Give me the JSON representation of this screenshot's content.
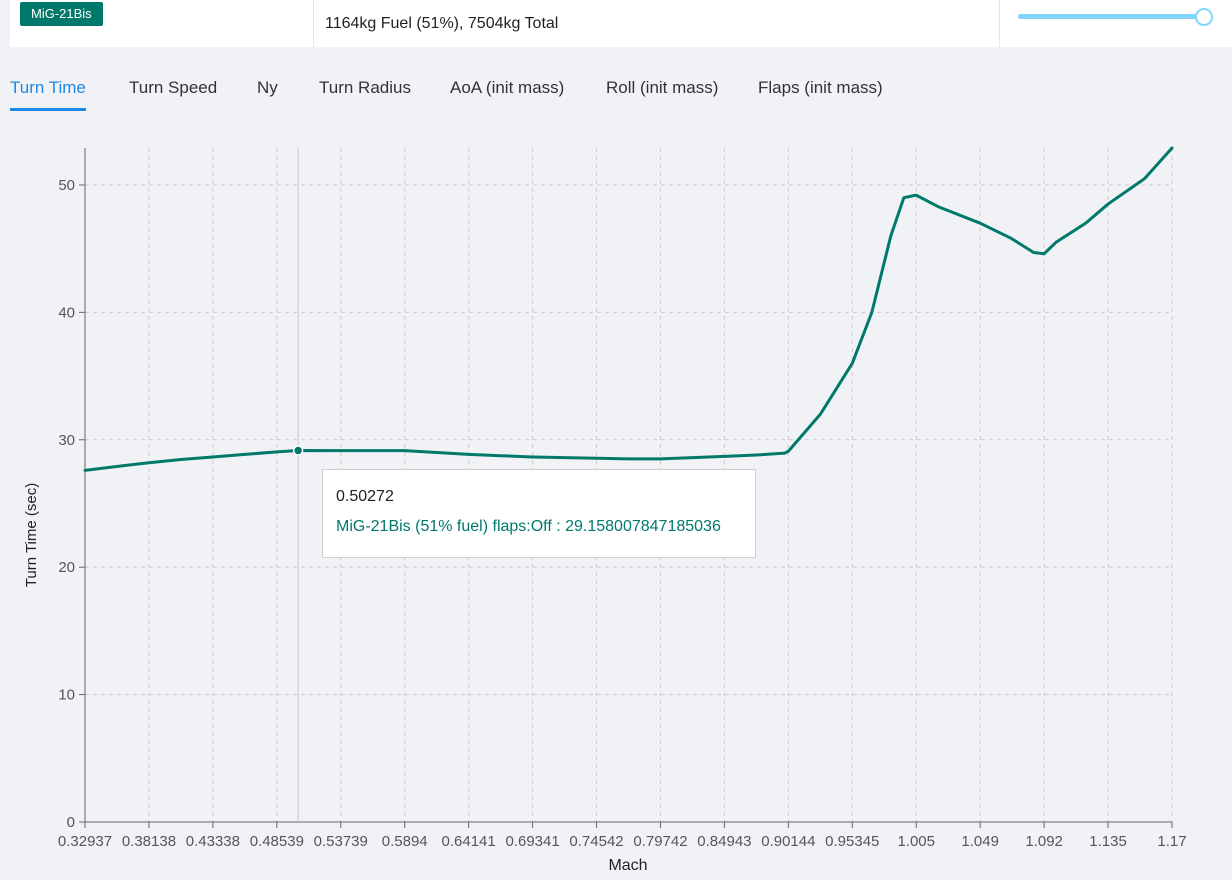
{
  "topbar": {
    "aircraft_badge": "MiG-21Bis",
    "fuel_text": "1164kg Fuel (51%), 7504kg Total",
    "fuel_slider_fraction": 0.95
  },
  "tabs": [
    {
      "label": "Turn Time",
      "active": true
    },
    {
      "label": "Turn Speed",
      "active": false
    },
    {
      "label": "Ny",
      "active": false
    },
    {
      "label": "Turn Radius",
      "active": false
    },
    {
      "label": "AoA (init mass)",
      "active": false
    },
    {
      "label": "Roll (init mass)",
      "active": false
    },
    {
      "label": "Flaps (init mass)",
      "active": false
    }
  ],
  "tooltip": {
    "x_value": "0.50272",
    "series_text": "MiG-21Bis (51% fuel) flaps:Off : 29.158007847185036"
  },
  "colors": {
    "series": "#00796b",
    "accent": "#1e88e5",
    "slider": "#81d4fa"
  },
  "chart_data": {
    "type": "line",
    "xlabel": "Mach",
    "ylabel": "Turn Time (sec)",
    "x_ticks": [
      "0.32937",
      "0.38138",
      "0.43338",
      "0.48539",
      "0.53739",
      "0.5894",
      "0.64141",
      "0.69341",
      "0.74542",
      "0.79742",
      "0.84943",
      "0.90144",
      "0.95345",
      "1.005",
      "1.049",
      "1.092",
      "1.135",
      "1.17"
    ],
    "y_ticks": [
      0,
      10,
      20,
      30,
      40,
      50
    ],
    "ylim": [
      0,
      52.9
    ],
    "grid": true,
    "hover_x": 0.50272,
    "hover_y": 29.158,
    "series": [
      {
        "name": "MiG-21Bis (51% fuel) flaps:Off",
        "color": "#00796b",
        "points": [
          [
            0.32937,
            27.6
          ],
          [
            0.355,
            27.9
          ],
          [
            0.38138,
            28.2
          ],
          [
            0.40738,
            28.45
          ],
          [
            0.43338,
            28.65
          ],
          [
            0.45938,
            28.85
          ],
          [
            0.48539,
            29.05
          ],
          [
            0.50272,
            29.16
          ],
          [
            0.53739,
            29.15
          ],
          [
            0.5634,
            29.15
          ],
          [
            0.5894,
            29.15
          ],
          [
            0.61541,
            29.0
          ],
          [
            0.64141,
            28.85
          ],
          [
            0.66741,
            28.75
          ],
          [
            0.69341,
            28.65
          ],
          [
            0.71942,
            28.6
          ],
          [
            0.74542,
            28.55
          ],
          [
            0.77142,
            28.5
          ],
          [
            0.79742,
            28.5
          ],
          [
            0.82343,
            28.6
          ],
          [
            0.84943,
            28.7
          ],
          [
            0.87544,
            28.8
          ],
          [
            0.89844,
            28.95
          ],
          [
            0.90144,
            29.1
          ],
          [
            0.92745,
            32.0
          ],
          [
            0.95345,
            36.0
          ],
          [
            0.9692,
            40.0
          ],
          [
            0.9845,
            46.0
          ],
          [
            0.995,
            49.0
          ],
          [
            1.005,
            49.2
          ],
          [
            1.02,
            48.3
          ],
          [
            1.049,
            47.0
          ],
          [
            1.07,
            45.8
          ],
          [
            1.085,
            44.7
          ],
          [
            1.092,
            44.6
          ],
          [
            1.1,
            45.5
          ],
          [
            1.12,
            47.0
          ],
          [
            1.135,
            48.5
          ],
          [
            1.155,
            50.5
          ],
          [
            1.17,
            52.9
          ]
        ]
      }
    ]
  }
}
